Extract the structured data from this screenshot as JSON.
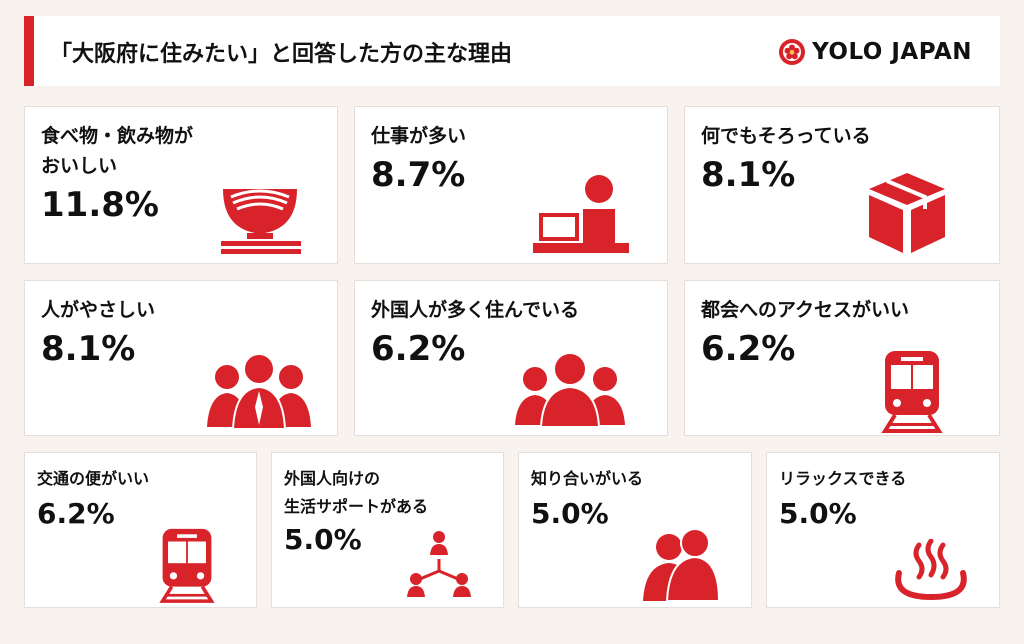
{
  "header": {
    "title": "「大阪府に住みたい」と回答した方の主な理由",
    "logo_text": "YOLO JAPAN"
  },
  "colors": {
    "accent": "#d8232a",
    "background": "#f9f3ef"
  },
  "chart_data": {
    "type": "table",
    "title": "「大阪府に住みたい」と回答した方の主な理由",
    "items": [
      {
        "label": "食べ物・飲み物が\nおいしい",
        "value": "11.8%",
        "icon": "ramen-bowl-icon"
      },
      {
        "label": "仕事が多い",
        "value": "8.7%",
        "icon": "office-worker-icon"
      },
      {
        "label": "何でもそろっている",
        "value": "8.1%",
        "icon": "package-box-icon"
      },
      {
        "label": "人がやさしい",
        "value": "8.1%",
        "icon": "people-group-icon"
      },
      {
        "label": "外国人が多く住んでいる",
        "value": "6.2%",
        "icon": "crowd-icon"
      },
      {
        "label": "都会へのアクセスがいい",
        "value": "6.2%",
        "icon": "train-icon"
      },
      {
        "label": "交通の便がいい",
        "value": "6.2%",
        "icon": "train-small-icon"
      },
      {
        "label": "外国人向けの\n生活サポートがある",
        "value": "5.0%",
        "icon": "network-people-icon"
      },
      {
        "label": "知り合いがいる",
        "value": "5.0%",
        "icon": "two-people-icon"
      },
      {
        "label": "リラックスできる",
        "value": "5.0%",
        "icon": "hot-spring-icon"
      }
    ]
  }
}
